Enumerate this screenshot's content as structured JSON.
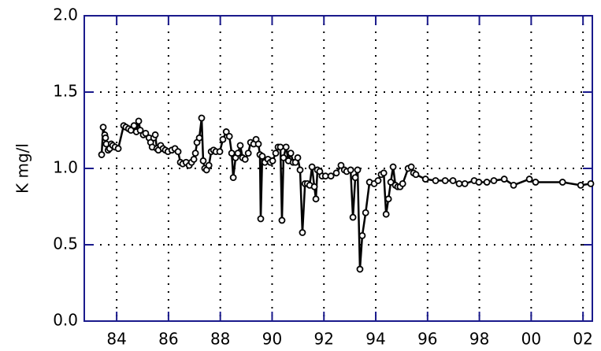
{
  "chart_data": {
    "type": "line",
    "y_label": "K  mg/l",
    "x": [
      1983.42,
      1983.48,
      1983.54,
      1983.57,
      1983.6,
      1983.67,
      1983.73,
      1983.79,
      1983.85,
      1983.94,
      1984.06,
      1984.27,
      1984.36,
      1984.46,
      1984.55,
      1984.67,
      1984.76,
      1984.85,
      1984.91,
      1985.03,
      1985.12,
      1985.25,
      1985.31,
      1985.37,
      1985.43,
      1985.49,
      1985.55,
      1985.61,
      1985.7,
      1985.79,
      1985.88,
      1985.98,
      1986.13,
      1986.25,
      1986.37,
      1986.46,
      1986.55,
      1986.68,
      1986.8,
      1986.89,
      1986.98,
      1987.04,
      1987.1,
      1987.19,
      1987.28,
      1987.34,
      1987.4,
      1987.47,
      1987.56,
      1987.65,
      1987.74,
      1987.83,
      1987.98,
      1988.1,
      1988.23,
      1988.35,
      1988.44,
      1988.5,
      1988.59,
      1988.68,
      1988.77,
      1988.86,
      1988.96,
      1989.08,
      1989.17,
      1989.29,
      1989.38,
      1989.47,
      1989.53,
      1989.56,
      1989.62,
      1989.72,
      1989.84,
      1989.93,
      1990.02,
      1990.14,
      1990.23,
      1990.32,
      1990.38,
      1990.44,
      1990.54,
      1990.63,
      1990.72,
      1990.81,
      1990.9,
      1990.99,
      1991.08,
      1991.17,
      1991.27,
      1991.36,
      1991.45,
      1991.54,
      1991.63,
      1991.69,
      1991.75,
      1991.84,
      1991.93,
      1992.06,
      1992.27,
      1992.48,
      1992.66,
      1992.79,
      1992.88,
      1993.03,
      1993.12,
      1993.21,
      1993.3,
      1993.39,
      1993.48,
      1993.61,
      1993.76,
      1993.94,
      1994.09,
      1994.21,
      1994.31,
      1994.4,
      1994.49,
      1994.58,
      1994.67,
      1994.76,
      1994.85,
      1994.94,
      1995.04,
      1995.25,
      1995.37,
      1995.46,
      1995.55,
      1995.92,
      1996.31,
      1996.68,
      1996.98,
      1997.22,
      1997.44,
      1997.8,
      1997.98,
      1998.29,
      1998.56,
      1998.96,
      1999.32,
      1999.93,
      2000.17,
      2001.21,
      2001.91,
      2002.3
    ],
    "series": [
      {
        "color": "#000000",
        "values": [
          1.09,
          1.27,
          1.22,
          1.2,
          1.16,
          1.12,
          1.13,
          1.16,
          1.15,
          1.14,
          1.13,
          1.28,
          1.27,
          1.26,
          1.25,
          1.28,
          1.24,
          1.31,
          1.25,
          1.22,
          1.23,
          1.2,
          1.17,
          1.14,
          1.2,
          1.22,
          1.13,
          1.12,
          1.15,
          1.13,
          1.12,
          1.11,
          1.12,
          1.13,
          1.11,
          1.04,
          1.03,
          1.04,
          1.02,
          1.04,
          1.06,
          1.1,
          1.17,
          1.2,
          1.33,
          1.05,
          1.0,
          0.99,
          1.02,
          1.11,
          1.12,
          1.11,
          1.11,
          1.19,
          1.24,
          1.21,
          1.1,
          0.94,
          1.07,
          1.1,
          1.15,
          1.07,
          1.06,
          1.1,
          1.17,
          1.16,
          1.19,
          1.16,
          1.09,
          0.67,
          1.08,
          1.04,
          1.06,
          1.04,
          1.05,
          1.1,
          1.14,
          1.14,
          0.66,
          1.07,
          1.14,
          1.05,
          1.1,
          1.04,
          1.04,
          1.07,
          0.99,
          0.58,
          0.9,
          0.9,
          0.89,
          1.01,
          0.88,
          0.8,
          0.99,
          0.98,
          0.95,
          0.95,
          0.95,
          0.97,
          1.02,
          0.99,
          0.98,
          0.99,
          0.68,
          0.94,
          0.99,
          0.34,
          0.56,
          0.71,
          0.91,
          0.9,
          0.92,
          0.96,
          0.97,
          0.7,
          0.8,
          0.91,
          1.01,
          0.89,
          0.88,
          0.88,
          0.9,
          1.0,
          1.01,
          0.97,
          0.96,
          0.93,
          0.92,
          0.92,
          0.92,
          0.9,
          0.9,
          0.92,
          0.91,
          0.91,
          0.92,
          0.93,
          0.89,
          0.93,
          0.91,
          0.91,
          0.89,
          0.9
        ]
      }
    ],
    "xlim": [
      1982.75,
      2002.36
    ],
    "xticks": [
      {
        "value": 1984,
        "label": "84"
      },
      {
        "value": 1986,
        "label": "86"
      },
      {
        "value": 1988,
        "label": "88"
      },
      {
        "value": 1990,
        "label": "90"
      },
      {
        "value": 1992,
        "label": "92"
      },
      {
        "value": 1994,
        "label": "94"
      },
      {
        "value": 1996,
        "label": "96"
      },
      {
        "value": 1998,
        "label": "98"
      },
      {
        "value": 2000,
        "label": "00"
      },
      {
        "value": 2002,
        "label": "02"
      }
    ],
    "ylim": [
      0,
      2
    ],
    "yticks": [
      {
        "value": 0,
        "label": "0.0"
      },
      {
        "value": 0.5,
        "label": "0.5"
      },
      {
        "value": 1,
        "label": "1.0"
      },
      {
        "value": 1.5,
        "label": "1.5"
      },
      {
        "value": 2,
        "label": "2.0"
      }
    ],
    "grid": true,
    "axis_color": "#1a1a8c"
  }
}
